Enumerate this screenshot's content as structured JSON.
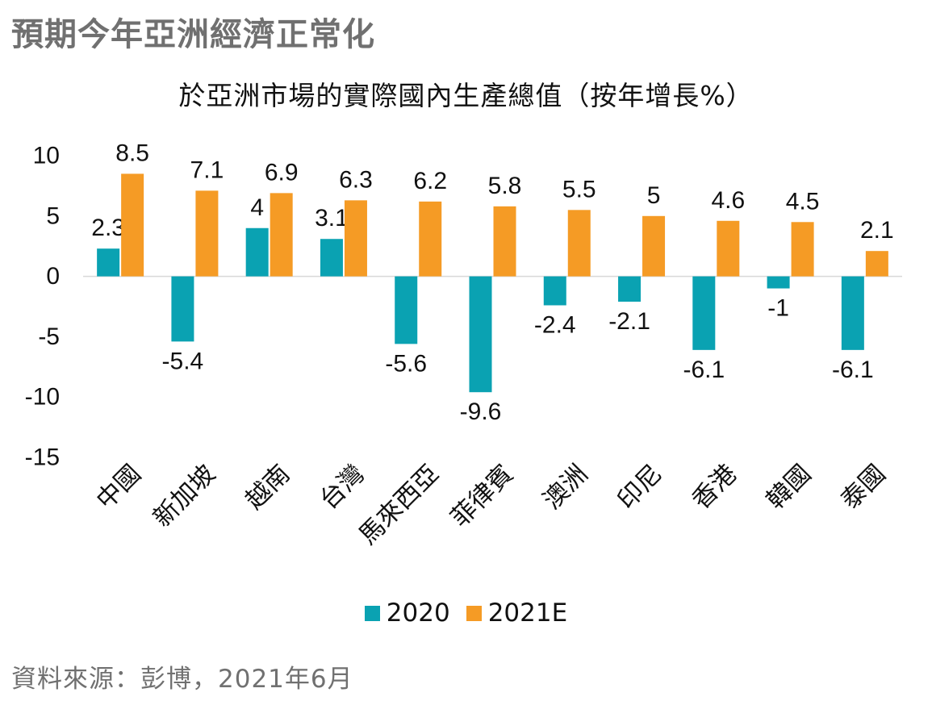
{
  "headline": "預期今年亞洲經濟正常化",
  "source": "資料來源：彭博，2021年6月",
  "colors": {
    "series_2020": "#0aa2b2",
    "series_2021E": "#f59b25",
    "axis_line": "#d9d9d9"
  },
  "chart_data": {
    "type": "bar",
    "title": "於亞洲市場的實際國內生產總值（按年增長%）",
    "xlabel": "",
    "ylabel": "",
    "ylim": [
      -15,
      10
    ],
    "yticks": [
      10,
      5,
      0,
      -5,
      -10,
      -15
    ],
    "grid": false,
    "legend_position": "bottom",
    "categories": [
      "中國",
      "新加坡",
      "越南",
      "台灣",
      "馬來西亞",
      "菲律賓",
      "澳洲",
      "印尼",
      "香港",
      "韓國",
      "泰國"
    ],
    "series": [
      {
        "name": "2020",
        "values": [
          2.3,
          -5.4,
          4,
          3.1,
          -5.6,
          -9.6,
          -2.4,
          -2.1,
          -6.1,
          -1,
          -6.1
        ],
        "labels": [
          "2.3",
          "-5.4",
          "4",
          "3.1",
          "-5.6",
          "-9.6",
          "-2.4",
          "-2.1",
          "-6.1",
          "-1",
          "-6.1"
        ]
      },
      {
        "name": "2021E",
        "values": [
          8.5,
          7.1,
          6.9,
          6.3,
          6.2,
          5.8,
          5.5,
          5,
          4.6,
          4.5,
          2.1
        ],
        "labels": [
          "8.5",
          "7.1",
          "6.9",
          "6.3",
          "6.2",
          "5.8",
          "5.5",
          "5",
          "4.6",
          "4.5",
          "2.1"
        ]
      }
    ]
  }
}
